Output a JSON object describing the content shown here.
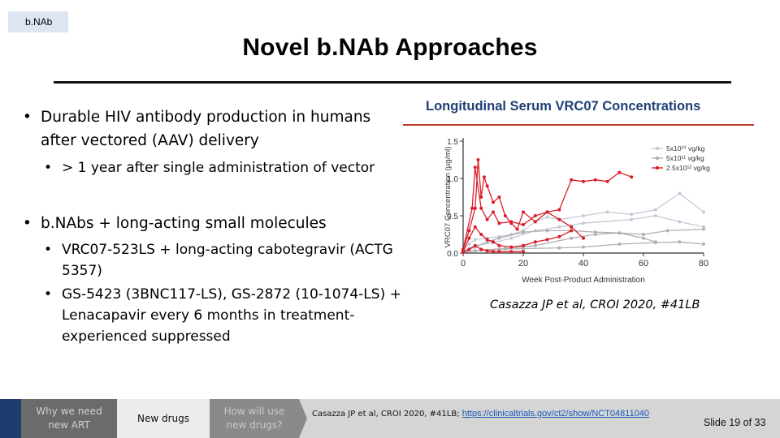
{
  "section_tag": "b.NAb",
  "title": "Novel b.NAb Approaches",
  "bullets": [
    {
      "level": 1,
      "text_line1": "Durable HIV antibody production in humans",
      "text_line2": "after vectored (AAV) delivery"
    },
    {
      "level": 2,
      "text": "> 1 year after single administration of vector"
    },
    {
      "level": 1,
      "text": "b.NAbs + long-acting small molecules"
    },
    {
      "level": 2,
      "text_line1": "VRC07-523LS + long-acting cabotegravir (ACTG",
      "text_line2": "5357)"
    },
    {
      "level": 2,
      "text_line1": "GS-5423 (3BNC117-LS), GS-2872 (10-1074-LS) +",
      "text_line2": "Lenacapavir every 6 months in treatment-",
      "text_line3": "experienced suppressed"
    }
  ],
  "figure": {
    "title": "Longitudinal Serum VRC07 Concentrations",
    "accent_color": "#1f3f74",
    "rule_color": "#c0392b"
  },
  "chart_data": {
    "type": "line",
    "title": "Longitudinal Serum VRC07 Concentrations",
    "xlabel": "Week Post-Product Administration",
    "ylabel": "VRC07 Concentration (µg/ml)",
    "xlim": [
      0,
      80
    ],
    "ylim": [
      0,
      1.5
    ],
    "xticks": [
      "0",
      "20",
      "40",
      "60",
      "80"
    ],
    "yticks": [
      "0.0",
      "0.5",
      "1.0",
      "1.5"
    ],
    "legend": [
      "5x10¹⁰ vg/kg",
      "5x10¹¹ vg/kg",
      "2.5x10¹² vg/kg"
    ],
    "legend_position": "top-right",
    "series": [
      {
        "name": "5x10¹⁰ vg/kg",
        "color": "#c5c9d6",
        "lines": [
          [
            [
              0,
              0.05
            ],
            [
              2,
              0.12
            ],
            [
              4,
              0.18
            ],
            [
              8,
              0.2
            ],
            [
              12,
              0.22
            ],
            [
              16,
              0.25
            ],
            [
              20,
              0.3
            ],
            [
              24,
              0.42
            ],
            [
              28,
              0.48
            ],
            [
              32,
              0.45
            ],
            [
              40,
              0.5
            ],
            [
              48,
              0.55
            ],
            [
              56,
              0.52
            ],
            [
              64,
              0.58
            ],
            [
              72,
              0.8
            ],
            [
              80,
              0.55
            ]
          ],
          [
            [
              0,
              0.03
            ],
            [
              4,
              0.1
            ],
            [
              10,
              0.14
            ],
            [
              16,
              0.2
            ],
            [
              24,
              0.3
            ],
            [
              32,
              0.35
            ],
            [
              40,
              0.4
            ],
            [
              56,
              0.45
            ],
            [
              64,
              0.5
            ],
            [
              72,
              0.42
            ],
            [
              80,
              0.35
            ]
          ]
        ]
      },
      {
        "name": "5x10¹¹ vg/kg",
        "color": "#b0b0b0",
        "lines": [
          [
            [
              0,
              0.02
            ],
            [
              4,
              0.08
            ],
            [
              8,
              0.15
            ],
            [
              12,
              0.2
            ],
            [
              20,
              0.28
            ],
            [
              28,
              0.3
            ],
            [
              36,
              0.3
            ],
            [
              44,
              0.28
            ],
            [
              52,
              0.27
            ],
            [
              60,
              0.25
            ],
            [
              68,
              0.3
            ],
            [
              80,
              0.32
            ]
          ],
          [
            [
              0,
              0.01
            ],
            [
              4,
              0.03
            ],
            [
              12,
              0.05
            ],
            [
              20,
              0.06
            ],
            [
              32,
              0.07
            ],
            [
              40,
              0.08
            ],
            [
              52,
              0.12
            ],
            [
              64,
              0.14
            ],
            [
              72,
              0.15
            ],
            [
              80,
              0.12
            ]
          ],
          [
            [
              0,
              0.02
            ],
            [
              6,
              0.04
            ],
            [
              14,
              0.06
            ],
            [
              24,
              0.1
            ],
            [
              36,
              0.2
            ],
            [
              44,
              0.25
            ],
            [
              52,
              0.27
            ],
            [
              60,
              0.2
            ],
            [
              64,
              0.15
            ]
          ]
        ]
      },
      {
        "name": "2.5x10¹² vg/kg",
        "color": "#d91e2a",
        "lines": [
          [
            [
              0,
              0.05
            ],
            [
              2,
              0.3
            ],
            [
              4,
              0.6
            ],
            [
              5,
              1.25
            ],
            [
              6,
              0.75
            ],
            [
              7,
              1.02
            ],
            [
              8,
              0.9
            ],
            [
              10,
              0.68
            ],
            [
              12,
              0.75
            ],
            [
              14,
              0.5
            ],
            [
              16,
              0.4
            ],
            [
              18,
              0.32
            ],
            [
              20,
              0.55
            ],
            [
              24,
              0.42
            ],
            [
              28,
              0.55
            ],
            [
              32,
              0.58
            ],
            [
              36,
              0.98
            ],
            [
              40,
              0.96
            ],
            [
              44,
              0.98
            ],
            [
              48,
              0.96
            ],
            [
              52,
              1.08
            ],
            [
              56,
              1.02
            ]
          ],
          [
            [
              0,
              0.05
            ],
            [
              3,
              0.6
            ],
            [
              4,
              1.15
            ],
            [
              6,
              0.6
            ],
            [
              8,
              0.45
            ],
            [
              10,
              0.55
            ],
            [
              12,
              0.4
            ],
            [
              16,
              0.42
            ],
            [
              20,
              0.38
            ],
            [
              24,
              0.5
            ],
            [
              28,
              0.55
            ],
            [
              32,
              0.45
            ],
            [
              36,
              0.35
            ],
            [
              40,
              0.2
            ]
          ],
          [
            [
              0,
              0.02
            ],
            [
              2,
              0.2
            ],
            [
              4,
              0.35
            ],
            [
              6,
              0.25
            ],
            [
              8,
              0.18
            ],
            [
              10,
              0.15
            ],
            [
              12,
              0.1
            ],
            [
              16,
              0.08
            ],
            [
              20,
              0.1
            ],
            [
              24,
              0.15
            ],
            [
              28,
              0.18
            ],
            [
              32,
              0.22
            ],
            [
              36,
              0.3
            ]
          ],
          [
            [
              0,
              0.01
            ],
            [
              2,
              0.05
            ],
            [
              4,
              0.1
            ],
            [
              6,
              0.05
            ],
            [
              8,
              0.03
            ],
            [
              10,
              0.02
            ],
            [
              12,
              0.02
            ],
            [
              16,
              0.02
            ],
            [
              20,
              0.02
            ]
          ]
        ]
      }
    ]
  },
  "citation": "Casazza JP et al, CROI 2020, #41LB",
  "footer": {
    "nav_items": [
      "Why we need new ART",
      "New drugs",
      "How will use new drugs?"
    ],
    "reference_text": "Casazza JP et al, CROI 2020, #41LB; ",
    "reference_link": "https://clinicaltrials.gov/ct2/show/NCT04811040",
    "slide_number": "Slide 19 of 33"
  }
}
